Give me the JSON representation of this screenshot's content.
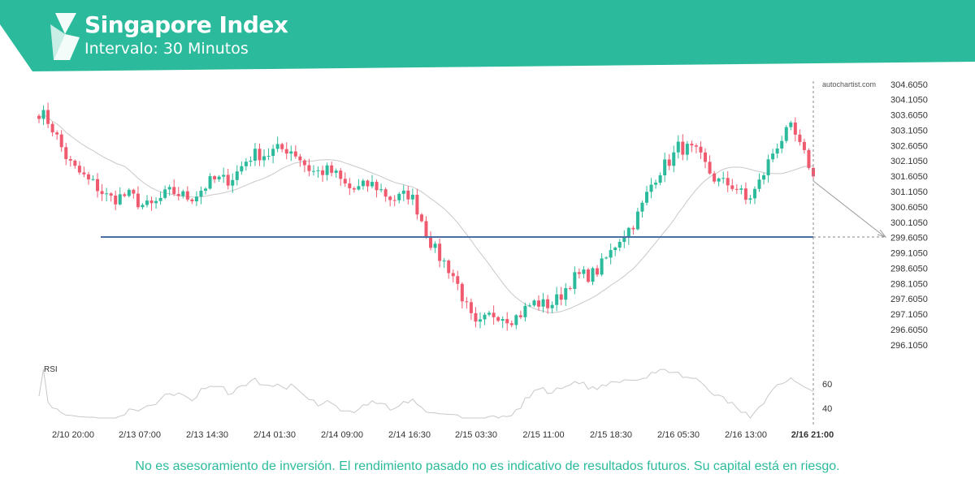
{
  "header": {
    "title": "Singapore Index",
    "subtitle": "Intervalo: 30 Minutos",
    "color": "#2bbb9c"
  },
  "watermark": "autochartist.com",
  "disclaimer": "No es asesoramiento de inversión. El rendimiento pasado no es indicativo de resultados futuros. Su capital está en riesgo.",
  "chart_data": {
    "type": "candlestick",
    "interval": "30 Minutos",
    "y_axis": {
      "ticks": [
        "304.6050",
        "304.1050",
        "303.6050",
        "303.1050",
        "302.6050",
        "302.1050",
        "301.6050",
        "301.1050",
        "300.6050",
        "300.1050",
        "299.6050",
        "299.1050",
        "298.6050",
        "298.1050",
        "297.6050",
        "297.1050",
        "296.6050",
        "296.1050"
      ],
      "range": [
        296.1,
        304.6
      ]
    },
    "x_axis": {
      "ticks": [
        "2/10 20:00",
        "2/13 07:00",
        "2/13 14:30",
        "2/14 01:30",
        "2/14 09:00",
        "2/14 16:30",
        "2/15 03:30",
        "2/15 11:00",
        "2/15 18:30",
        "2/16 05:30",
        "2/16 13:00",
        "2/16 21:00"
      ],
      "highlighted": "2/16 21:00"
    },
    "support_level": 299.605,
    "projection_target": 299.605,
    "colors": {
      "up": "#2bbb9c",
      "down": "#ef5a6f",
      "level": "#4a6fa5",
      "ma": "#c8c8c8"
    },
    "key_points": [
      {
        "x": "2/10 20:00",
        "price": 303.7
      },
      {
        "x": "2/10 21:30",
        "price": 301.3
      },
      {
        "x": "2/13 07:00",
        "price": 300.7
      },
      {
        "x": "2/13 14:30",
        "price": 301.2
      },
      {
        "x": "2/14 01:30",
        "price": 302.6
      },
      {
        "x": "2/14 09:00",
        "price": 301.4
      },
      {
        "x": "2/14 16:30",
        "price": 300.9
      },
      {
        "x": "2/15 03:30",
        "price": 296.8
      },
      {
        "x": "2/15 11:00",
        "price": 297.4
      },
      {
        "x": "2/15 18:30",
        "price": 299.0
      },
      {
        "x": "2/16 05:30",
        "price": 302.7
      },
      {
        "x": "2/16 13:00",
        "price": 300.8
      },
      {
        "x": "2/16 19:00",
        "price": 303.3
      },
      {
        "x": "2/16 21:00",
        "price": 301.6
      }
    ],
    "rsi": {
      "label": "RSI",
      "ticks": [
        "60",
        "40"
      ]
    }
  }
}
